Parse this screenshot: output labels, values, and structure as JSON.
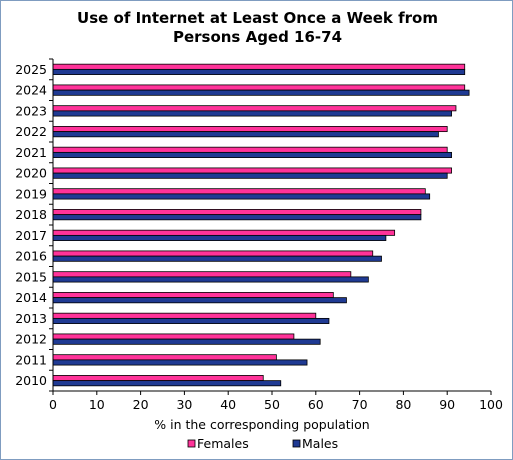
{
  "chart_data": {
    "type": "bar",
    "orientation": "horizontal",
    "title_lines": [
      "Use of Internet at Least Once a Week from",
      "Persons Aged 16-74"
    ],
    "xlabel": "% in the corresponding population",
    "ylabel": "",
    "xlim": [
      0,
      100
    ],
    "x_ticks": [
      "0",
      "10",
      "20",
      "30",
      "40",
      "50",
      "60",
      "70",
      "80",
      "90",
      "100"
    ],
    "categories": [
      "2010",
      "2011",
      "2012",
      "2013",
      "2014",
      "2015",
      "2016",
      "2017",
      "2018",
      "2019",
      "2020",
      "2021",
      "2022",
      "2023",
      "2024",
      "2025"
    ],
    "series": [
      {
        "name": "Females",
        "color": "#ff3399",
        "values": [
          48,
          51,
          55,
          60,
          64,
          68,
          73,
          78,
          84,
          85,
          91,
          90,
          90,
          92,
          94,
          94
        ]
      },
      {
        "name": "Males",
        "color": "#1f3a93",
        "values": [
          52,
          58,
          61,
          63,
          67,
          72,
          75,
          76,
          84,
          86,
          90,
          91,
          88,
          91,
          95,
          94
        ]
      }
    ],
    "grid": false,
    "legend_position": "bottom"
  }
}
